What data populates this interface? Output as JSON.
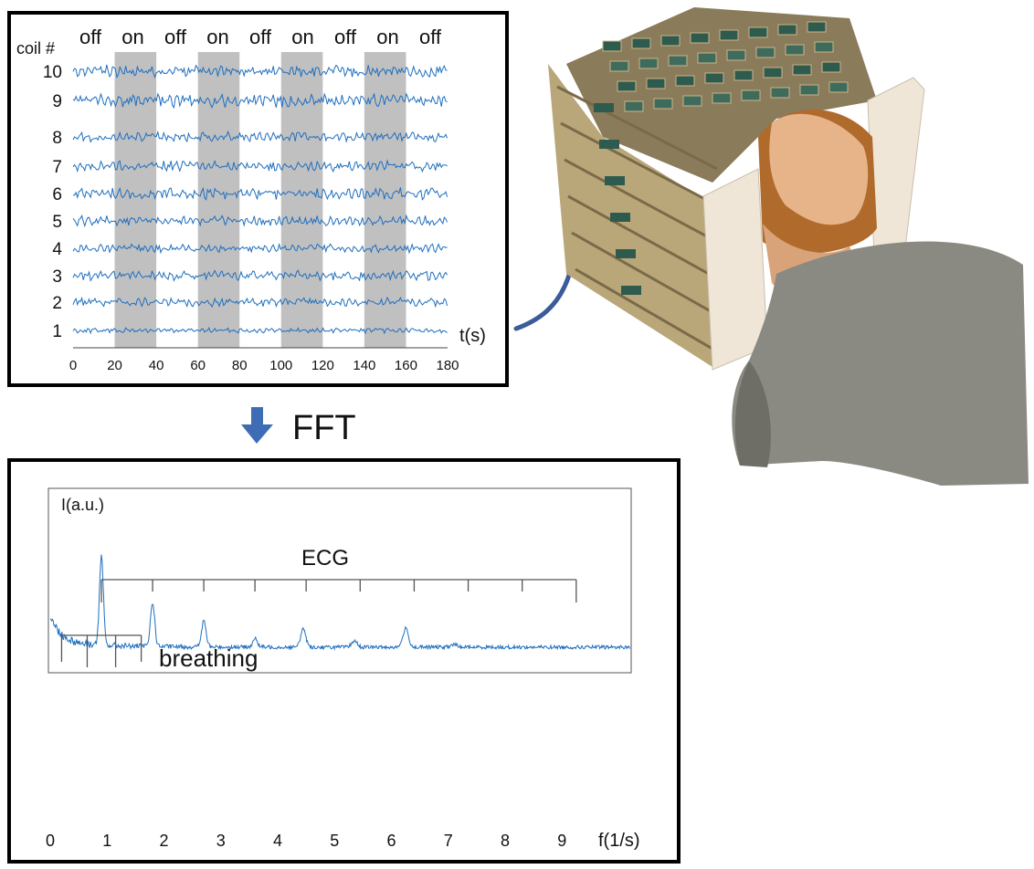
{
  "top_panel": {
    "y_label": "coil #",
    "state_labels": [
      "off",
      "on",
      "off",
      "on",
      "off",
      "on",
      "off",
      "on",
      "off"
    ],
    "coil_labels": [
      "1",
      "2",
      "3",
      "4",
      "5",
      "6",
      "7",
      "8",
      "9",
      "10"
    ],
    "x_ticks": [
      "0",
      "20",
      "40",
      "60",
      "80",
      "100",
      "120",
      "140",
      "160",
      "180"
    ],
    "x_label": "t(s)",
    "on_intervals": [
      [
        20,
        40
      ],
      [
        60,
        80
      ],
      [
        100,
        120
      ],
      [
        140,
        160
      ]
    ],
    "xlim": [
      0,
      180
    ],
    "trace_color": "#1f6fbf",
    "shade_color": "#c0c0c0"
  },
  "fft_label": "FFT",
  "fft_arrow_color": "#3f6db5",
  "bottom_panel": {
    "y_label": "I(a.u.)",
    "x_label": "f(1/s)",
    "x_ticks": [
      "0",
      "1",
      "2",
      "3",
      "4",
      "5",
      "6",
      "7",
      "8",
      "9"
    ],
    "xlim": [
      0,
      10.2
    ],
    "ecg_label": "ECG",
    "breathing_label": "breathing",
    "ecg_fundamental": 0.9,
    "ecg_harmonics": 10,
    "breathing_ticks": [
      0.2,
      0.65,
      1.15,
      1.6
    ],
    "trace_color": "#1f6fbf"
  },
  "chart_data": [
    {
      "type": "line",
      "x": [
        0,
        180
      ],
      "xlabel": "t(s)",
      "ylabel": "coil #",
      "xlim": [
        0,
        180
      ],
      "categories": [
        "1",
        "2",
        "3",
        "4",
        "5",
        "6",
        "7",
        "8",
        "9",
        "10"
      ],
      "annotations": [
        "off",
        "on",
        "off",
        "on",
        "off",
        "on",
        "off",
        "on",
        "off"
      ],
      "shaded_intervals": [
        [
          20,
          40
        ],
        [
          60,
          80
        ],
        [
          100,
          120
        ],
        [
          140,
          160
        ]
      ]
    },
    {
      "type": "line",
      "xlabel": "f(1/s)",
      "ylabel": "I(a.u.)",
      "xlim": [
        0,
        10.2
      ],
      "peaks": [
        {
          "x": 0.9,
          "y": 0.95
        },
        {
          "x": 1.8,
          "y": 0.48
        },
        {
          "x": 2.7,
          "y": 0.28
        },
        {
          "x": 3.6,
          "y": 0.09
        },
        {
          "x": 4.45,
          "y": 0.2
        },
        {
          "x": 5.35,
          "y": 0.07
        },
        {
          "x": 6.25,
          "y": 0.2
        },
        {
          "x": 7.1,
          "y": 0.03
        }
      ],
      "annotations": [
        "ECG",
        "breathing"
      ]
    }
  ]
}
